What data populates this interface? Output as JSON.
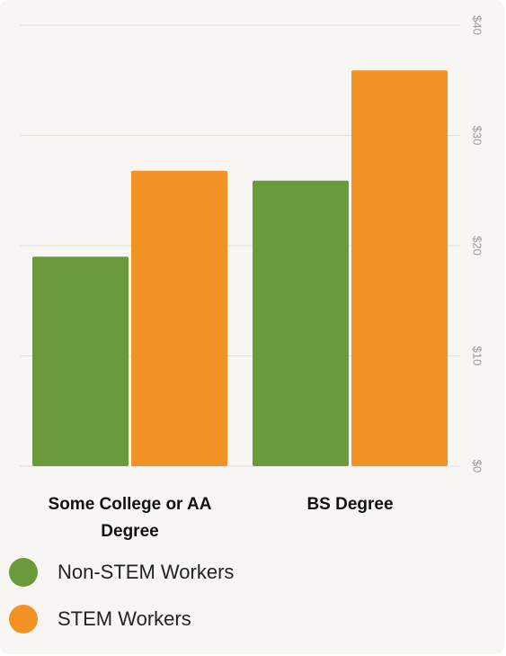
{
  "chart_data": {
    "type": "bar",
    "categories": [
      "Some College or AA Degree",
      "BS Degree"
    ],
    "series": [
      {
        "name": "Non-STEM Workers",
        "color": "#6a9a3c",
        "values": [
          19,
          25.9
        ]
      },
      {
        "name": "STEM Workers",
        "color": "#f39325",
        "values": [
          26.8,
          35.9
        ]
      }
    ],
    "ylim": [
      0,
      40
    ],
    "yticks": [
      {
        "value": 0,
        "label": "$0"
      },
      {
        "value": 10,
        "label": "$10"
      },
      {
        "value": 20,
        "label": "$20"
      },
      {
        "value": 30,
        "label": "$30"
      },
      {
        "value": 40,
        "label": "$40"
      }
    ],
    "grid": true
  }
}
